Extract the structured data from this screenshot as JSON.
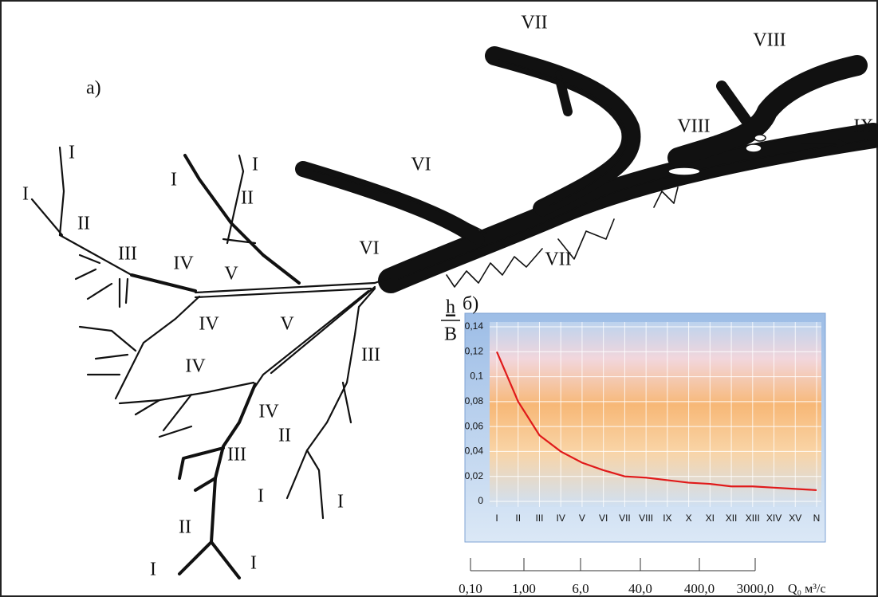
{
  "panel_a": "a)",
  "diagram": {
    "labels": [
      "VII",
      "VIII",
      "VIII",
      "IX",
      "VI",
      "VI",
      "VII",
      "I",
      "I",
      "II",
      "III",
      "IV",
      "V",
      "I",
      "I",
      "II",
      "IV",
      "V",
      "IV",
      "III",
      "IV",
      "II",
      "III",
      "I",
      "I",
      "II",
      "I",
      "I"
    ]
  },
  "chart_data": {
    "type": "line",
    "panel_label": "б)",
    "y_label_top": "h",
    "y_label_bottom": "B",
    "categories": [
      "I",
      "II",
      "III",
      "IV",
      "V",
      "VI",
      "VII",
      "VIII",
      "IX",
      "X",
      "XI",
      "XII",
      "XIII",
      "XIV",
      "XV",
      "N"
    ],
    "series": [
      {
        "color": "#e01a1a",
        "values": [
          0.12,
          0.08,
          0.053,
          0.04,
          0.031,
          0.025,
          0.02,
          0.019,
          0.017,
          0.015,
          0.014,
          0.012,
          0.012,
          0.011,
          0.01,
          0.009
        ]
      }
    ],
    "ylim": [
      0,
      0.14
    ],
    "yticks": [
      0,
      {
        "value": 0.02,
        "label": "0,02"
      },
      {
        "value": 0.04,
        "label": "0,04"
      },
      {
        "value": 0.06,
        "label": "0,06"
      },
      {
        "value": 0.08,
        "label": "0,08"
      },
      {
        "value": 0.1,
        "label": "0,1"
      },
      {
        "value": 0.12,
        "label": "0,12"
      },
      {
        "value": 0.14,
        "label": "0,14"
      }
    ],
    "grid": true,
    "q_ticks": [
      {
        "value": 0.1,
        "label": "0,10"
      },
      {
        "value": 1,
        "label": "1,00"
      },
      {
        "value": 6,
        "label": "6,0"
      },
      {
        "value": 40,
        "label": "40,0"
      },
      {
        "value": 400,
        "label": "400,0"
      },
      {
        "value": 3000,
        "label": "3000,0"
      }
    ],
    "q_label": "Q₀ м³/с"
  }
}
